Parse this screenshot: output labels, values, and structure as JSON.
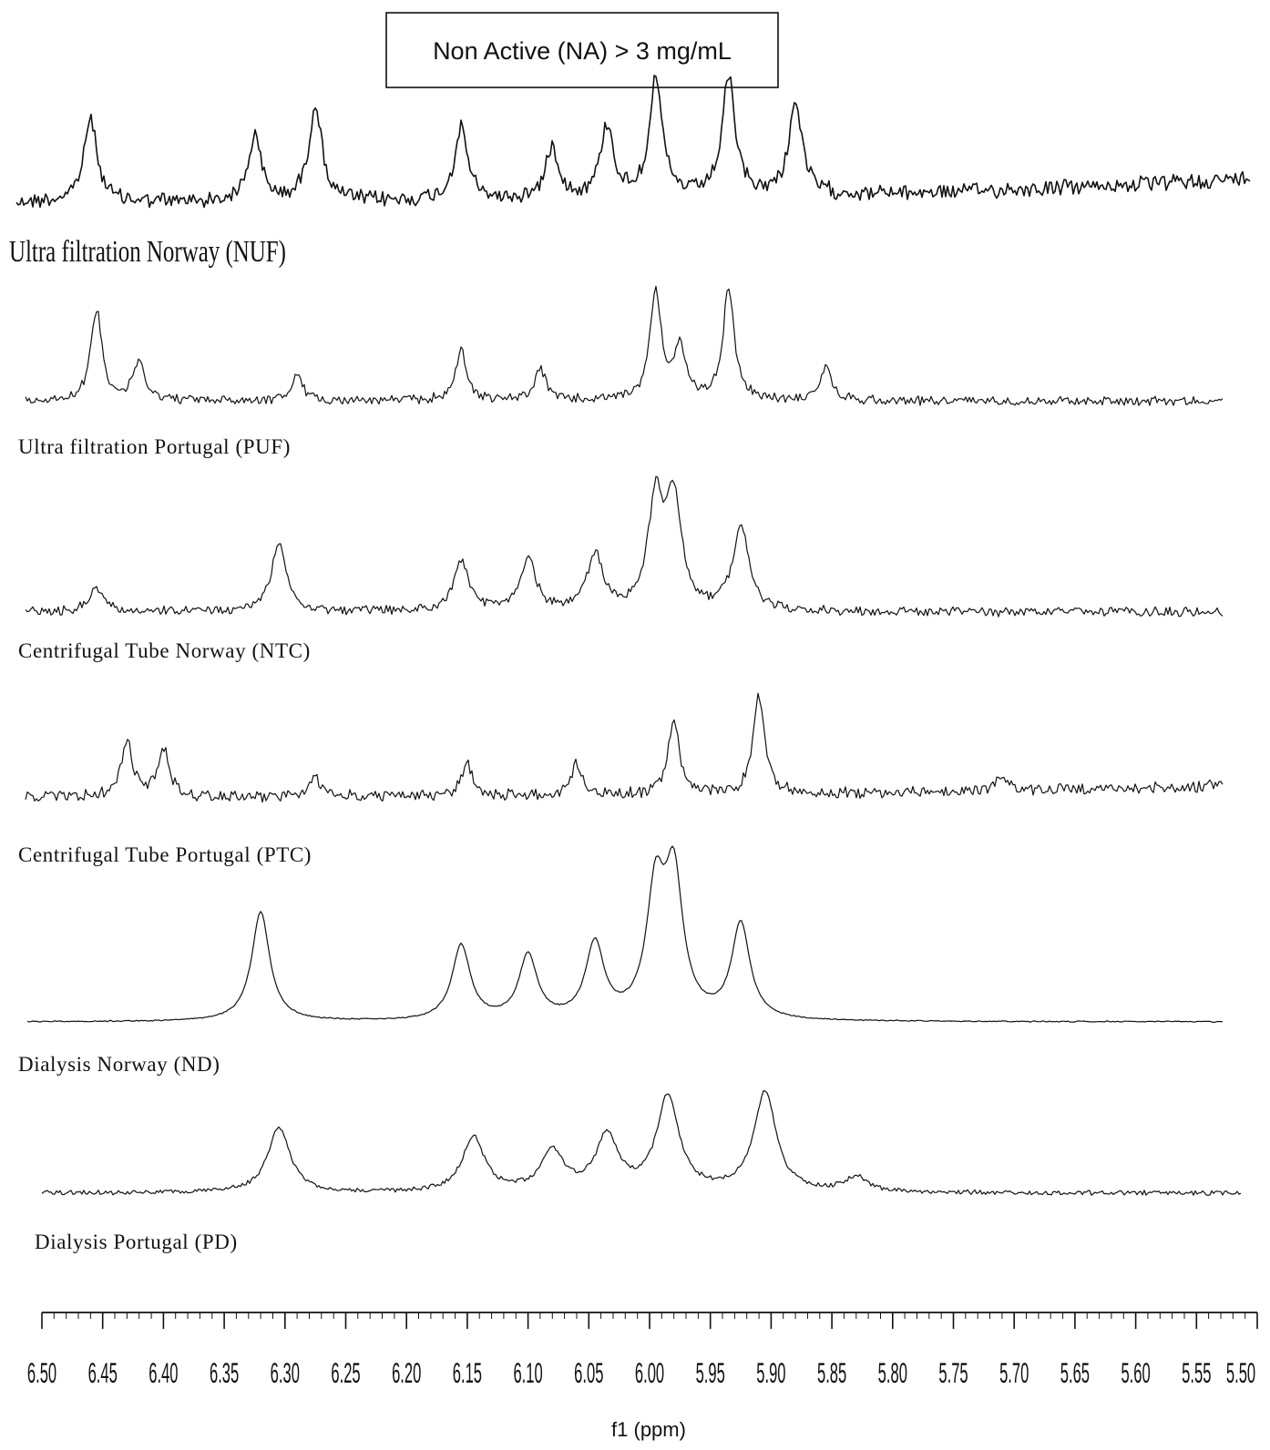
{
  "chart_data": {
    "type": "line",
    "title": "Non Active (NA) > 3 mg/mL",
    "xlabel": "f1 (ppm)",
    "ylabel": "",
    "xlim": [
      6.5,
      5.5
    ],
    "x_reversed": true,
    "grid": false,
    "tick_labels": [
      "6.50",
      "6.45",
      "6.40",
      "6.35",
      "6.30",
      "6.25",
      "6.20",
      "6.15",
      "6.10",
      "6.05",
      "6.00",
      "5.95",
      "5.90",
      "5.85",
      "5.80",
      "5.75",
      "5.70",
      "5.65",
      "5.60",
      "5.55",
      "5.50"
    ],
    "series": [
      {
        "name": "Ultra filtration Norway (NUF)",
        "peaks": [
          {
            "ppm": 6.46,
            "height": 0.72
          },
          {
            "ppm": 6.325,
            "height": 0.55
          },
          {
            "ppm": 6.275,
            "height": 0.82
          },
          {
            "ppm": 6.155,
            "height": 0.62
          },
          {
            "ppm": 6.08,
            "height": 0.45
          },
          {
            "ppm": 6.035,
            "height": 0.62
          },
          {
            "ppm": 5.995,
            "height": 1.0
          },
          {
            "ppm": 5.935,
            "height": 1.0
          },
          {
            "ppm": 5.88,
            "height": 0.8
          }
        ]
      },
      {
        "name": "Ultra filtration Portugal (PUF)",
        "peaks": [
          {
            "ppm": 6.455,
            "height": 0.82
          },
          {
            "ppm": 6.42,
            "height": 0.35
          },
          {
            "ppm": 6.29,
            "height": 0.22
          },
          {
            "ppm": 6.155,
            "height": 0.45
          },
          {
            "ppm": 6.09,
            "height": 0.28
          },
          {
            "ppm": 5.995,
            "height": 1.0
          },
          {
            "ppm": 5.975,
            "height": 0.45
          },
          {
            "ppm": 5.935,
            "height": 1.0
          },
          {
            "ppm": 5.855,
            "height": 0.3
          }
        ]
      },
      {
        "name": "Centrifugal Tube Norway (NTC)",
        "peaks": [
          {
            "ppm": 6.455,
            "height": 0.22
          },
          {
            "ppm": 6.305,
            "height": 0.62
          },
          {
            "ppm": 6.155,
            "height": 0.45
          },
          {
            "ppm": 6.1,
            "height": 0.48
          },
          {
            "ppm": 6.045,
            "height": 0.52
          },
          {
            "ppm": 5.995,
            "height": 0.98
          },
          {
            "ppm": 5.98,
            "height": 1.0
          },
          {
            "ppm": 5.925,
            "height": 0.8
          }
        ]
      },
      {
        "name": "Centrifugal Tube Portugal (PTC)",
        "peaks": [
          {
            "ppm": 6.43,
            "height": 0.55
          },
          {
            "ppm": 6.4,
            "height": 0.48
          },
          {
            "ppm": 6.275,
            "height": 0.18
          },
          {
            "ppm": 6.15,
            "height": 0.32
          },
          {
            "ppm": 6.06,
            "height": 0.32
          },
          {
            "ppm": 5.98,
            "height": 0.75
          },
          {
            "ppm": 5.91,
            "height": 1.0
          },
          {
            "ppm": 5.71,
            "height": 0.15
          }
        ]
      },
      {
        "name": "Dialysis Norway (ND)",
        "peaks": [
          {
            "ppm": 6.32,
            "height": 0.8
          },
          {
            "ppm": 6.155,
            "height": 0.55
          },
          {
            "ppm": 6.1,
            "height": 0.47
          },
          {
            "ppm": 6.045,
            "height": 0.55
          },
          {
            "ppm": 5.995,
            "height": 0.9
          },
          {
            "ppm": 5.98,
            "height": 1.0
          },
          {
            "ppm": 5.925,
            "height": 0.7
          }
        ]
      },
      {
        "name": "Dialysis Portugal (PD)",
        "peaks": [
          {
            "ppm": 6.305,
            "height": 0.65
          },
          {
            "ppm": 6.145,
            "height": 0.55
          },
          {
            "ppm": 6.08,
            "height": 0.4
          },
          {
            "ppm": 6.035,
            "height": 0.55
          },
          {
            "ppm": 5.985,
            "height": 0.95
          },
          {
            "ppm": 5.905,
            "height": 1.0
          },
          {
            "ppm": 5.83,
            "height": 0.15
          }
        ]
      }
    ]
  }
}
